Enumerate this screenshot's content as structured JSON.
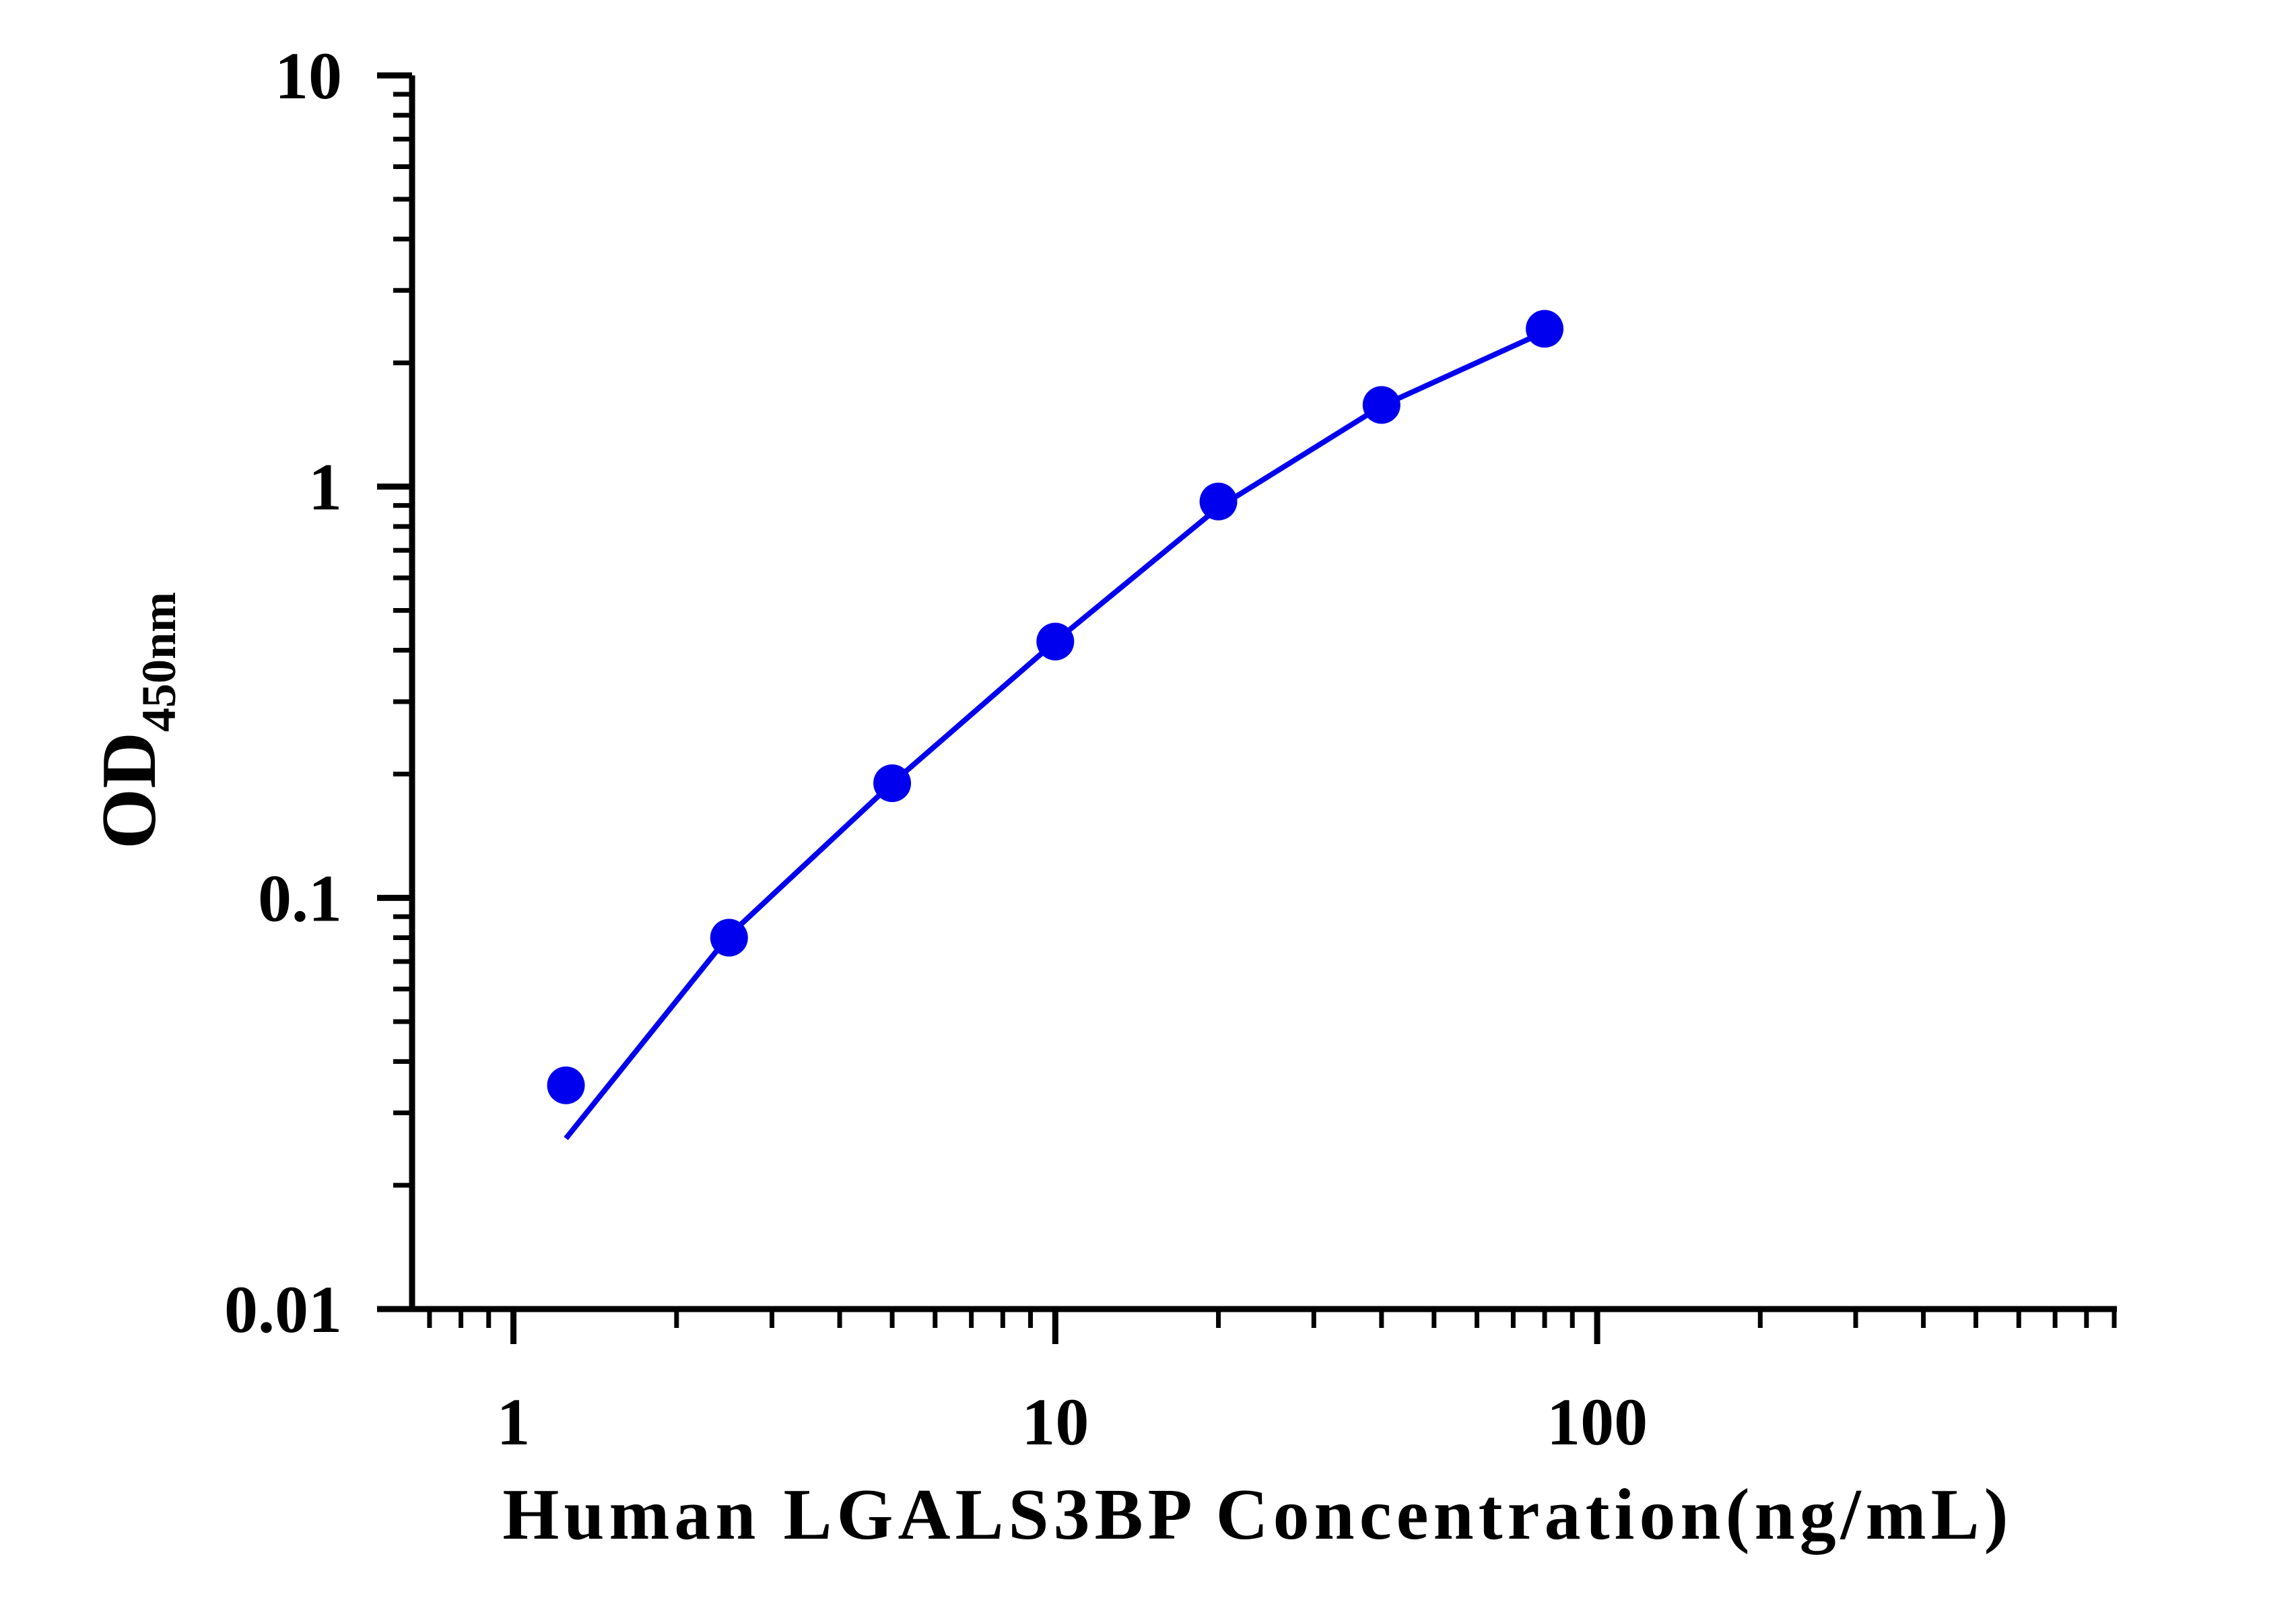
{
  "chart_data": {
    "type": "scatter",
    "xlabel": "Human LGALS3BP Concentration(ng/mL)",
    "ylabel": "OD",
    "ylabel_subscript": "450nm",
    "x_scale": "log",
    "y_scale": "log",
    "xlim": [
      0.65,
      900
    ],
    "ylim": [
      0.01,
      10
    ],
    "x_ticks": [
      "1",
      "10",
      "100"
    ],
    "y_ticks": [
      "0.01",
      "0.1",
      "1",
      "10"
    ],
    "grid": false,
    "color": "#0000ee",
    "points": {
      "x": [
        1.25,
        2.5,
        5,
        10,
        20,
        40,
        80
      ],
      "y": [
        0.035,
        0.08,
        0.19,
        0.42,
        0.92,
        1.58,
        2.42
      ]
    },
    "fit_line": {
      "x": [
        1.25,
        2.5,
        5,
        10,
        20,
        40,
        80
      ],
      "y": [
        0.026,
        0.081,
        0.19,
        0.42,
        0.89,
        1.57,
        2.38
      ]
    }
  }
}
